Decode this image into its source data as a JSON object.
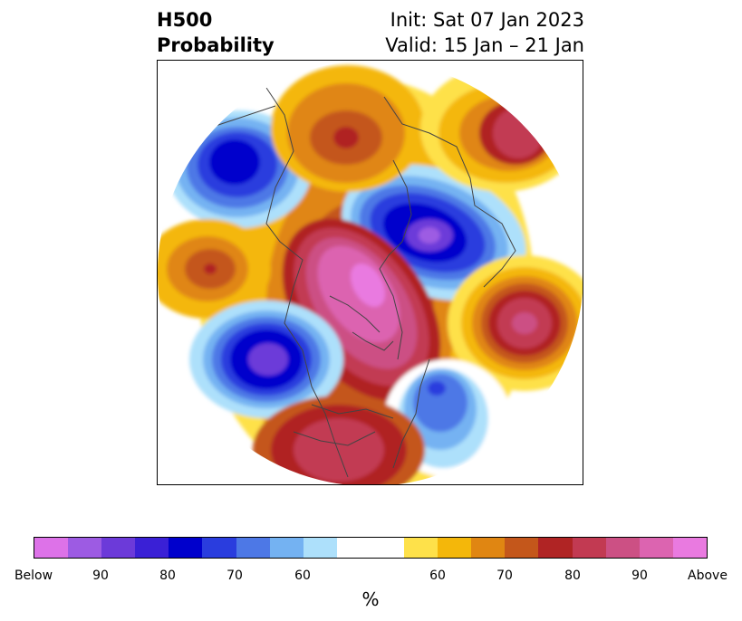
{
  "title": {
    "left_line1": "H500",
    "left_line2": "Probability",
    "right_line1": "Init: Sat 07 Jan 2023",
    "right_line2": "Valid: 15 Jan – 21 Jan"
  },
  "colorbar": {
    "unit": "%",
    "colors": [
      "#dd72e8",
      "#9d5be3",
      "#6c3ad9",
      "#3a20d6",
      "#0000cc",
      "#2a3dde",
      "#4d78e6",
      "#74b2f2",
      "#ade0fb",
      "#ffffff",
      "#ffffff",
      "#fee14a",
      "#f4b70a",
      "#e08612",
      "#c4571b",
      "#b02424",
      "#c23a52",
      "#cc5084",
      "#dc64b0",
      "#e97ae0"
    ],
    "tick_labels": [
      "Below",
      "90",
      "80",
      "70",
      "60",
      "60",
      "70",
      "80",
      "90",
      "Above"
    ]
  }
}
